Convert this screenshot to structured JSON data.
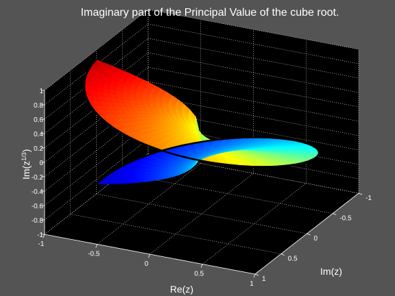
{
  "chart_data": {
    "type": "surface3d",
    "title": "Imaginary part of the Principal Value of the cube root.",
    "xlabel": "Re(z)",
    "ylabel": "Im(z)",
    "zlabel_base": "Im(z",
    "zlabel_exp": "1/3",
    "zlabel_close": ")",
    "xlim": [
      -1,
      1
    ],
    "ylim": [
      -1,
      1
    ],
    "zlim": [
      -1,
      1
    ],
    "x_ticks": [
      "-1",
      "-0.5",
      "0",
      "0.5",
      "1"
    ],
    "y_ticks": [
      "-1",
      "-0.5",
      "0",
      "0.5",
      "1"
    ],
    "z_ticks": [
      "-1",
      "-0.8",
      "-0.6",
      "-0.4",
      "-0.2",
      "0",
      "0.2",
      "0.4",
      "0.6",
      "0.8",
      "1"
    ],
    "grid": true,
    "colormap": "jet",
    "function": "Im(z^(1/3)) principal branch",
    "background_color": "#545454",
    "axes_color": "#000000",
    "contour_color": "#000000"
  }
}
